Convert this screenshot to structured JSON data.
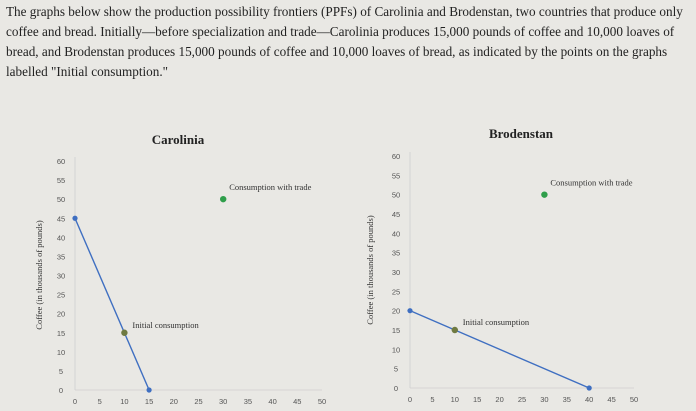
{
  "intro_text": "The graphs below show the production possibility frontiers (PPFs) of Carolinia and Brodenstan, two countries that produce only coffee and bread. Initially—before specialization and trade—Carolinia produces 15,000 pounds of coffee and 10,000 loaves of bread, and Brodenstan produces 15,000 pounds of coffee and 10,000 loaves of bread, as indicated by the points on the graphs labelled \"Initial consumption.\"",
  "colors": {
    "ppf": "#3f6fc1",
    "initial": "#6f7a41",
    "trade": "#2f9e4a"
  },
  "chart_data": [
    {
      "type": "line",
      "title": "Carolinia",
      "ylabel": "Coffee (in thousands of pounds)",
      "xlabel": "",
      "xlim": [
        0,
        50
      ],
      "ylim": [
        0,
        60
      ],
      "x_ticks": [
        0,
        5,
        10,
        15,
        20,
        25,
        30,
        35,
        40,
        45,
        50
      ],
      "y_ticks": [
        0,
        5,
        10,
        15,
        20,
        25,
        30,
        35,
        40,
        45,
        50,
        55,
        60
      ],
      "ppf": [
        [
          0,
          45
        ],
        [
          15,
          0
        ]
      ],
      "points": [
        {
          "label": "Initial consumption",
          "x": 10,
          "y": 15,
          "color": "#6f7a41"
        },
        {
          "label": "Consumption with trade",
          "x": 30,
          "y": 50,
          "color": "#2f9e4a"
        }
      ]
    },
    {
      "type": "line",
      "title": "Brodenstan",
      "ylabel": "Coffee (in thousands of pounds)",
      "xlabel": "",
      "xlim": [
        0,
        50
      ],
      "ylim": [
        0,
        60
      ],
      "x_ticks": [
        0,
        5,
        10,
        15,
        20,
        25,
        30,
        35,
        40,
        45,
        50
      ],
      "y_ticks": [
        0,
        5,
        10,
        15,
        20,
        25,
        30,
        35,
        40,
        45,
        50,
        55,
        60
      ],
      "ppf": [
        [
          0,
          20
        ],
        [
          40,
          0
        ]
      ],
      "points": [
        {
          "label": "Initial consumption",
          "x": 10,
          "y": 15,
          "color": "#6f7a41"
        },
        {
          "label": "Consumption with trade",
          "x": 30,
          "y": 50,
          "color": "#2f9e4a"
        }
      ]
    }
  ]
}
